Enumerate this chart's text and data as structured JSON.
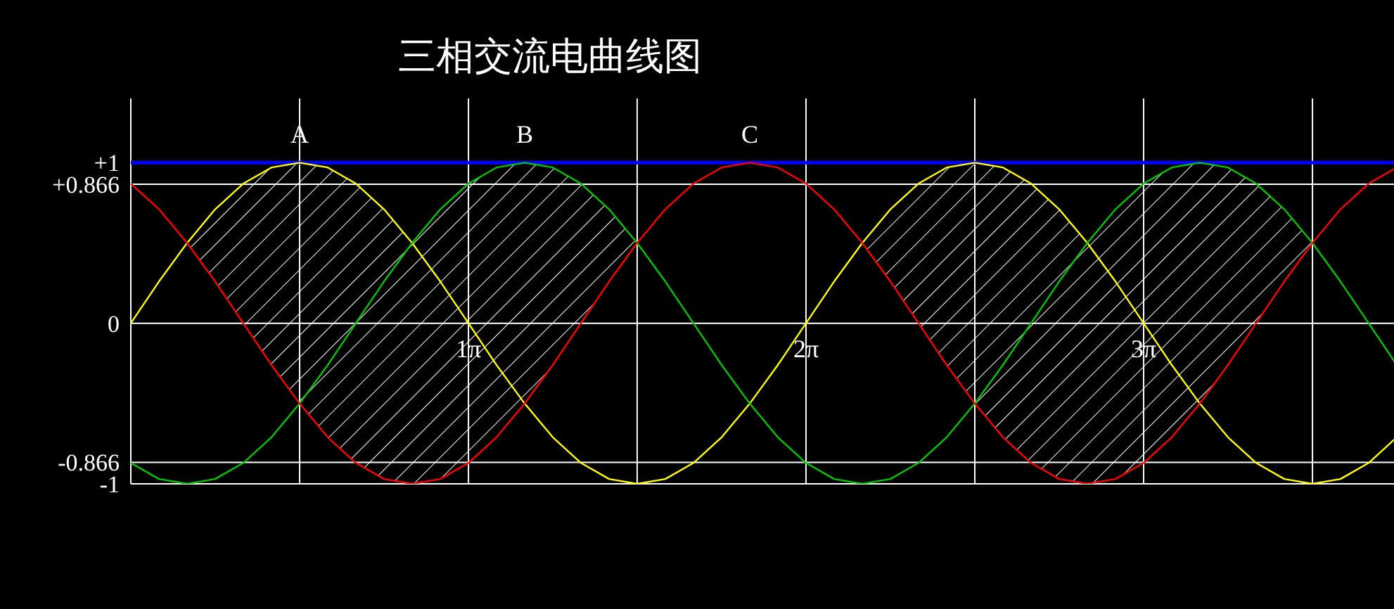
{
  "chart_data": {
    "type": "line",
    "title": "三相交流电曲线图",
    "x": [
      0,
      0.262,
      0.524,
      0.785,
      1.047,
      1.309,
      1.571,
      1.833,
      2.094,
      2.356,
      2.618,
      2.88,
      3.142,
      3.403,
      3.665,
      3.927,
      4.189,
      4.451,
      4.712,
      4.974,
      5.236,
      5.498,
      5.76,
      6.021,
      6.283,
      6.545,
      6.807,
      7.069,
      7.33,
      7.592,
      7.854,
      8.116,
      8.378,
      8.639,
      8.901,
      9.163,
      9.425,
      9.687,
      9.948,
      10.21,
      10.472,
      10.734,
      10.996,
      11.257,
      11.519,
      11.781
    ],
    "series": [
      {
        "name": "A",
        "color": "#ffff00",
        "values": [
          0,
          0.26,
          0.5,
          0.71,
          0.87,
          0.97,
          1,
          0.97,
          0.87,
          0.71,
          0.5,
          0.26,
          0,
          -0.26,
          -0.5,
          -0.71,
          -0.87,
          -0.97,
          -1,
          -0.97,
          -0.87,
          -0.71,
          -0.5,
          -0.26,
          0,
          0.26,
          0.5,
          0.71,
          0.87,
          0.97,
          1,
          0.97,
          0.87,
          0.71,
          0.5,
          0.26,
          0,
          -0.26,
          -0.5,
          -0.71,
          -0.87,
          -0.97,
          -1,
          -0.97,
          -0.87,
          -0.71
        ]
      },
      {
        "name": "B",
        "color": "#00c800",
        "values": [
          -0.87,
          -0.97,
          -1,
          -0.97,
          -0.87,
          -0.71,
          -0.5,
          -0.26,
          0,
          0.26,
          0.5,
          0.71,
          0.87,
          0.97,
          1,
          0.97,
          0.87,
          0.71,
          0.5,
          0.26,
          0,
          -0.26,
          -0.5,
          -0.71,
          -0.87,
          -0.97,
          -1,
          -0.97,
          -0.87,
          -0.71,
          -0.5,
          -0.26,
          0,
          0.26,
          0.5,
          0.71,
          0.87,
          0.97,
          1,
          0.97,
          0.87,
          0.71,
          0.5,
          0.26,
          0,
          -0.26
        ]
      },
      {
        "name": "C",
        "color": "#ff0000",
        "values": [
          0.87,
          0.71,
          0.5,
          0.26,
          0,
          -0.26,
          -0.5,
          -0.71,
          -0.87,
          -0.97,
          -1,
          -0.97,
          -0.87,
          -0.71,
          -0.5,
          -0.26,
          0,
          0.26,
          0.5,
          0.71,
          0.87,
          0.97,
          1,
          0.97,
          0.87,
          0.71,
          0.5,
          0.26,
          0,
          -0.26,
          -0.5,
          -0.71,
          -0.87,
          -0.97,
          -1,
          -0.97,
          -0.87,
          -0.71,
          -0.5,
          -0.26,
          0,
          0.26,
          0.5,
          0.71,
          0.87,
          0.97
        ],
        "lower": [
          0.87,
          0.71,
          0.5,
          0.26,
          0,
          -0.26,
          -0.5,
          -0.71,
          -0.87,
          -0.97,
          -1,
          -0.97,
          -0.87,
          -0.71,
          -0.5,
          -0.26,
          0,
          0.26,
          0.5,
          0.71,
          0.87,
          0.97,
          1,
          0.97,
          0.87,
          0.71,
          0.5,
          0.26,
          0,
          -0.26,
          -0.5,
          -0.71,
          -0.87,
          -0.97,
          -1,
          -0.97,
          -0.87,
          -0.71,
          -0.5,
          -0.26,
          0,
          0.26,
          0.5,
          0.71,
          0.87,
          0.97
        ],
        "upper": [
          0.87,
          0.71,
          0.5,
          0.71,
          0.87,
          0.97,
          1,
          0.97,
          0.87,
          0.71,
          0.5,
          0.71,
          0.87,
          0.97,
          1,
          0.97,
          0.87,
          0.71,
          0.5,
          0.71,
          0.87,
          0.97,
          1,
          0.97,
          0.87,
          0.71,
          0.5,
          0.71,
          0.87,
          0.97,
          1,
          0.97,
          0.87,
          0.71,
          0.5,
          0.71,
          0.87,
          0.97,
          1,
          0.97,
          0.87,
          0.71,
          0.5,
          0.71,
          0.87,
          0.97
        ]
      }
    ],
    "xlim": [
      0,
      11.781
    ],
    "xticks": [
      {
        "value": 0,
        "label": null
      },
      {
        "value": 1.571,
        "label": null
      },
      {
        "value": 3.142,
        "label": "1π"
      },
      {
        "value": 4.712,
        "label": null
      },
      {
        "value": 6.283,
        "label": "2π"
      },
      {
        "value": 7.854,
        "label": null
      },
      {
        "value": 9.425,
        "label": "3π"
      },
      {
        "value": 10.996,
        "label": null
      }
    ],
    "ylim": [
      -1,
      1.4
    ],
    "yticks": [
      {
        "value": 1,
        "label": "+1"
      },
      {
        "value": 0.866,
        "label": "+0.866"
      },
      0,
      {
        "value": -0.866,
        "label": "-0.866"
      },
      {
        "value": -1,
        "label": "-1"
      }
    ],
    "ref_lines": [
      {
        "axis": "y",
        "value": 1,
        "color": "#0000ff"
      }
    ],
    "grid": true
  }
}
